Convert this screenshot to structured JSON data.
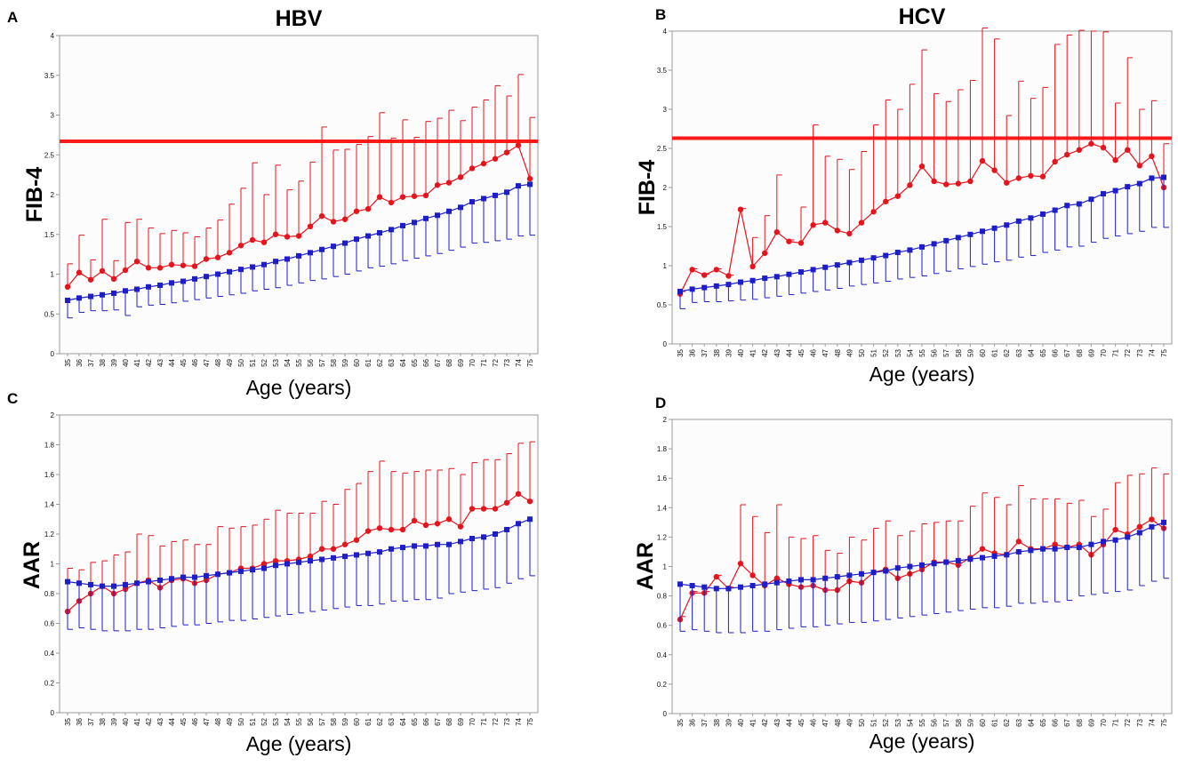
{
  "colors": {
    "hcc": "#e8131b",
    "nonhcc": "#1d1dcc",
    "cutoff": "#ff1a1a",
    "axis": "#9a9a9a"
  },
  "chart_data": [
    {
      "panel": "A",
      "type": "line",
      "title": "HBV",
      "xlabel": "Age (years)",
      "ylabel": "FIB-4",
      "ylim": [
        0,
        4
      ],
      "yticks": [
        "0",
        "0.5",
        "1",
        "1.5",
        "2",
        "2.5",
        "3",
        "3.5",
        "4"
      ],
      "x": [
        "35",
        "36",
        "37",
        "38",
        "39",
        "40",
        "41",
        "42",
        "43",
        "44",
        "45",
        "46",
        "47",
        "48",
        "49",
        "50",
        "51",
        "52",
        "53",
        "54",
        "55",
        "56",
        "57",
        "58",
        "59",
        "60",
        "61",
        "62",
        "63",
        "64",
        "65",
        "66",
        "67",
        "68",
        "69",
        "70",
        "71",
        "72",
        "73",
        "74",
        "75"
      ],
      "reference_line": 2.67,
      "series": [
        {
          "name": "red-circles",
          "marker": "circle",
          "error": "up",
          "values": [
            0.84,
            1.02,
            0.93,
            1.04,
            0.94,
            1.05,
            1.16,
            1.08,
            1.08,
            1.12,
            1.11,
            1.1,
            1.19,
            1.21,
            1.27,
            1.36,
            1.43,
            1.4,
            1.5,
            1.47,
            1.48,
            1.6,
            1.73,
            1.66,
            1.69,
            1.79,
            1.82,
            1.97,
            1.9,
            1.97,
            1.98,
            1.99,
            2.12,
            2.15,
            2.22,
            2.33,
            2.39,
            2.45,
            2.53,
            2.62,
            2.2
          ],
          "errors": [
            0.29,
            0.47,
            0.25,
            0.65,
            0.23,
            0.6,
            0.53,
            0.5,
            0.43,
            0.43,
            0.41,
            0.37,
            0.39,
            0.47,
            0.61,
            0.72,
            0.97,
            0.6,
            0.87,
            0.59,
            0.69,
            0.81,
            1.12,
            0.9,
            0.88,
            0.84,
            0.91,
            1.06,
            0.81,
            0.97,
            0.74,
            0.93,
            0.84,
            0.91,
            0.71,
            0.77,
            0.8,
            0.92,
            0.71,
            0.89,
            0.77
          ]
        },
        {
          "name": "blue-squares",
          "marker": "square",
          "error": "down",
          "values": [
            0.67,
            0.7,
            0.72,
            0.74,
            0.76,
            0.79,
            0.81,
            0.84,
            0.86,
            0.89,
            0.91,
            0.94,
            0.97,
            1.0,
            1.03,
            1.06,
            1.09,
            1.12,
            1.16,
            1.19,
            1.23,
            1.27,
            1.31,
            1.35,
            1.39,
            1.44,
            1.48,
            1.52,
            1.56,
            1.61,
            1.65,
            1.7,
            1.74,
            1.79,
            1.84,
            1.91,
            1.95,
            1.99,
            2.03,
            2.11,
            2.13
          ],
          "errors": [
            0.22,
            0.18,
            0.18,
            0.2,
            0.21,
            0.31,
            0.22,
            0.23,
            0.24,
            0.25,
            0.25,
            0.26,
            0.27,
            0.28,
            0.29,
            0.3,
            0.3,
            0.31,
            0.33,
            0.33,
            0.34,
            0.35,
            0.37,
            0.38,
            0.39,
            0.4,
            0.4,
            0.42,
            0.43,
            0.44,
            0.45,
            0.47,
            0.48,
            0.49,
            0.5,
            0.52,
            0.55,
            0.57,
            0.59,
            0.63,
            0.64
          ]
        }
      ]
    },
    {
      "panel": "B",
      "type": "line",
      "title": "HCV",
      "xlabel": "Age (years)",
      "ylabel": "FIB-4",
      "ylim": [
        0,
        4
      ],
      "yticks": [
        "0",
        "0.5",
        "1",
        "1.5",
        "2",
        "2.5",
        "3",
        "3.5",
        "4"
      ],
      "x": [
        "35",
        "36",
        "37",
        "38",
        "39",
        "40",
        "41",
        "42",
        "43",
        "44",
        "45",
        "46",
        "47",
        "48",
        "49",
        "50",
        "51",
        "52",
        "53",
        "54",
        "55",
        "56",
        "57",
        "58",
        "59",
        "60",
        "61",
        "62",
        "63",
        "64",
        "65",
        "66",
        "67",
        "68",
        "69",
        "70",
        "71",
        "72",
        "73",
        "74",
        "75"
      ],
      "reference_line": 2.63,
      "series": [
        {
          "name": "red-circles",
          "marker": "circle",
          "error": "up",
          "values": [
            0.64,
            0.95,
            0.88,
            0.95,
            0.87,
            1.72,
            0.99,
            1.16,
            1.43,
            1.31,
            1.29,
            1.52,
            1.55,
            1.45,
            1.41,
            1.55,
            1.69,
            1.82,
            1.89,
            2.03,
            2.27,
            2.08,
            2.04,
            2.05,
            2.08,
            2.34,
            2.22,
            2.06,
            2.12,
            2.15,
            2.14,
            2.33,
            2.42,
            2.48,
            2.56,
            2.51,
            2.35,
            2.48,
            2.28,
            2.4,
            2.0
          ],
          "errors": [
            0.03,
            0.01,
            0.01,
            0.01,
            0.01,
            0.01,
            0.37,
            0.48,
            0.73,
            0.02,
            0.46,
            1.28,
            0.85,
            0.91,
            0.82,
            0.91,
            1.11,
            1.3,
            1.11,
            1.29,
            1.49,
            1.12,
            1.06,
            1.2,
            1.29,
            1.7,
            1.68,
            0.86,
            1.24,
            0.99,
            1.14,
            1.5,
            1.53,
            1.53,
            1.44,
            1.48,
            0.73,
            1.18,
            0.72,
            0.71,
            0.56
          ]
        },
        {
          "name": "blue-squares",
          "marker": "square",
          "error": "down",
          "values": [
            0.67,
            0.7,
            0.72,
            0.74,
            0.76,
            0.79,
            0.81,
            0.84,
            0.86,
            0.89,
            0.92,
            0.95,
            0.98,
            1.01,
            1.04,
            1.07,
            1.1,
            1.13,
            1.17,
            1.2,
            1.24,
            1.28,
            1.32,
            1.36,
            1.4,
            1.44,
            1.48,
            1.52,
            1.57,
            1.61,
            1.66,
            1.71,
            1.77,
            1.79,
            1.85,
            1.92,
            1.96,
            2.01,
            2.05,
            2.12,
            2.13
          ],
          "errors": [
            0.22,
            0.17,
            0.18,
            0.2,
            0.21,
            0.23,
            0.24,
            0.25,
            0.25,
            0.26,
            0.27,
            0.28,
            0.29,
            0.3,
            0.3,
            0.31,
            0.32,
            0.33,
            0.34,
            0.35,
            0.37,
            0.38,
            0.39,
            0.4,
            0.41,
            0.42,
            0.43,
            0.45,
            0.46,
            0.48,
            0.49,
            0.51,
            0.53,
            0.54,
            0.55,
            0.57,
            0.58,
            0.6,
            0.61,
            0.63,
            0.64
          ]
        }
      ]
    },
    {
      "panel": "C",
      "type": "line",
      "title": "",
      "xlabel": "Age (years)",
      "ylabel": "AAR",
      "ylim": [
        0,
        2
      ],
      "yticks": [
        "0",
        "0.2",
        "0.4",
        "0.6",
        "0.8",
        "1",
        "1.2",
        "1.4",
        "1.6",
        "1.8",
        "2"
      ],
      "x": [
        "35",
        "36",
        "37",
        "38",
        "39",
        "40",
        "41",
        "42",
        "43",
        "44",
        "45",
        "46",
        "47",
        "48",
        "49",
        "50",
        "51",
        "52",
        "53",
        "54",
        "55",
        "56",
        "57",
        "58",
        "59",
        "60",
        "61",
        "62",
        "63",
        "64",
        "65",
        "66",
        "67",
        "68",
        "69",
        "70",
        "71",
        "72",
        "73",
        "74",
        "75"
      ],
      "reference_line": null,
      "series": [
        {
          "name": "red-circles",
          "marker": "circle",
          "error": "up",
          "values": [
            0.68,
            0.75,
            0.8,
            0.85,
            0.8,
            0.83,
            0.87,
            0.89,
            0.84,
            0.89,
            0.9,
            0.87,
            0.89,
            0.93,
            0.94,
            0.97,
            0.97,
            1.0,
            1.02,
            1.02,
            1.03,
            1.05,
            1.1,
            1.1,
            1.13,
            1.16,
            1.22,
            1.24,
            1.23,
            1.23,
            1.29,
            1.26,
            1.27,
            1.3,
            1.25,
            1.37,
            1.37,
            1.37,
            1.41,
            1.47,
            1.42
          ],
          "errors": [
            0.29,
            0.21,
            0.21,
            0.17,
            0.26,
            0.25,
            0.33,
            0.3,
            0.28,
            0.26,
            0.26,
            0.26,
            0.24,
            0.32,
            0.3,
            0.28,
            0.29,
            0.3,
            0.34,
            0.32,
            0.31,
            0.29,
            0.32,
            0.3,
            0.37,
            0.38,
            0.4,
            0.45,
            0.39,
            0.38,
            0.33,
            0.37,
            0.36,
            0.34,
            0.35,
            0.31,
            0.33,
            0.33,
            0.33,
            0.34,
            0.4
          ]
        },
        {
          "name": "blue-squares",
          "marker": "square",
          "error": "down",
          "values": [
            0.88,
            0.87,
            0.86,
            0.85,
            0.85,
            0.86,
            0.87,
            0.88,
            0.89,
            0.9,
            0.91,
            0.91,
            0.92,
            0.93,
            0.94,
            0.95,
            0.96,
            0.97,
            0.99,
            1.0,
            1.01,
            1.02,
            1.03,
            1.04,
            1.05,
            1.06,
            1.07,
            1.08,
            1.1,
            1.11,
            1.12,
            1.12,
            1.13,
            1.13,
            1.15,
            1.17,
            1.18,
            1.2,
            1.23,
            1.27,
            1.3
          ],
          "errors": [
            0.32,
            0.3,
            0.3,
            0.3,
            0.3,
            0.31,
            0.31,
            0.32,
            0.32,
            0.32,
            0.32,
            0.32,
            0.32,
            0.32,
            0.32,
            0.33,
            0.33,
            0.33,
            0.34,
            0.34,
            0.34,
            0.34,
            0.34,
            0.34,
            0.34,
            0.34,
            0.35,
            0.35,
            0.35,
            0.36,
            0.36,
            0.36,
            0.36,
            0.33,
            0.34,
            0.35,
            0.35,
            0.36,
            0.36,
            0.37,
            0.38
          ]
        }
      ]
    },
    {
      "panel": "D",
      "type": "line",
      "title": "",
      "xlabel": "Age (years)",
      "ylabel": "AAR",
      "ylim": [
        0,
        2
      ],
      "yticks": [
        "0",
        "0.2",
        "0.4",
        "0.6",
        "0.8",
        "1",
        "1.2",
        "1.4",
        "1.6",
        "1.8",
        "2"
      ],
      "x": [
        "35",
        "36",
        "37",
        "38",
        "39",
        "40",
        "41",
        "42",
        "43",
        "44",
        "45",
        "46",
        "47",
        "48",
        "49",
        "50",
        "51",
        "52",
        "53",
        "54",
        "55",
        "56",
        "57",
        "58",
        "59",
        "60",
        "61",
        "62",
        "63",
        "64",
        "65",
        "66",
        "67",
        "68",
        "69",
        "70",
        "71",
        "72",
        "73",
        "74",
        "75"
      ],
      "reference_line": null,
      "series": [
        {
          "name": "red-circles",
          "marker": "circle",
          "error": "up",
          "values": [
            0.64,
            0.82,
            0.82,
            0.93,
            0.85,
            1.02,
            0.94,
            0.87,
            0.92,
            0.88,
            0.86,
            0.87,
            0.84,
            0.84,
            0.9,
            0.89,
            0.96,
            0.98,
            0.92,
            0.95,
            0.98,
            1.03,
            1.03,
            1.01,
            1.06,
            1.12,
            1.09,
            1.08,
            1.17,
            1.12,
            1.12,
            1.15,
            1.13,
            1.15,
            1.08,
            1.15,
            1.25,
            1.22,
            1.27,
            1.32,
            1.26
          ],
          "errors": [
            0.02,
            0.01,
            0.01,
            0.01,
            0.01,
            0.4,
            0.4,
            0.36,
            0.5,
            0.32,
            0.33,
            0.34,
            0.27,
            0.25,
            0.3,
            0.29,
            0.3,
            0.33,
            0.29,
            0.29,
            0.31,
            0.27,
            0.28,
            0.3,
            0.35,
            0.38,
            0.38,
            0.34,
            0.38,
            0.34,
            0.34,
            0.31,
            0.3,
            0.3,
            0.26,
            0.24,
            0.32,
            0.4,
            0.36,
            0.35,
            0.37
          ]
        },
        {
          "name": "blue-squares",
          "marker": "square",
          "error": "down",
          "values": [
            0.88,
            0.87,
            0.86,
            0.85,
            0.85,
            0.86,
            0.87,
            0.88,
            0.89,
            0.9,
            0.91,
            0.91,
            0.92,
            0.93,
            0.94,
            0.95,
            0.96,
            0.97,
            0.99,
            1.0,
            1.01,
            1.02,
            1.03,
            1.04,
            1.05,
            1.06,
            1.07,
            1.08,
            1.1,
            1.11,
            1.12,
            1.12,
            1.13,
            1.13,
            1.15,
            1.17,
            1.18,
            1.2,
            1.23,
            1.27,
            1.3
          ],
          "errors": [
            0.32,
            0.3,
            0.3,
            0.3,
            0.3,
            0.31,
            0.31,
            0.32,
            0.32,
            0.32,
            0.32,
            0.32,
            0.32,
            0.32,
            0.32,
            0.33,
            0.33,
            0.33,
            0.34,
            0.34,
            0.34,
            0.34,
            0.34,
            0.34,
            0.34,
            0.34,
            0.35,
            0.35,
            0.35,
            0.36,
            0.36,
            0.36,
            0.36,
            0.33,
            0.34,
            0.35,
            0.35,
            0.36,
            0.36,
            0.37,
            0.38
          ]
        }
      ]
    }
  ]
}
